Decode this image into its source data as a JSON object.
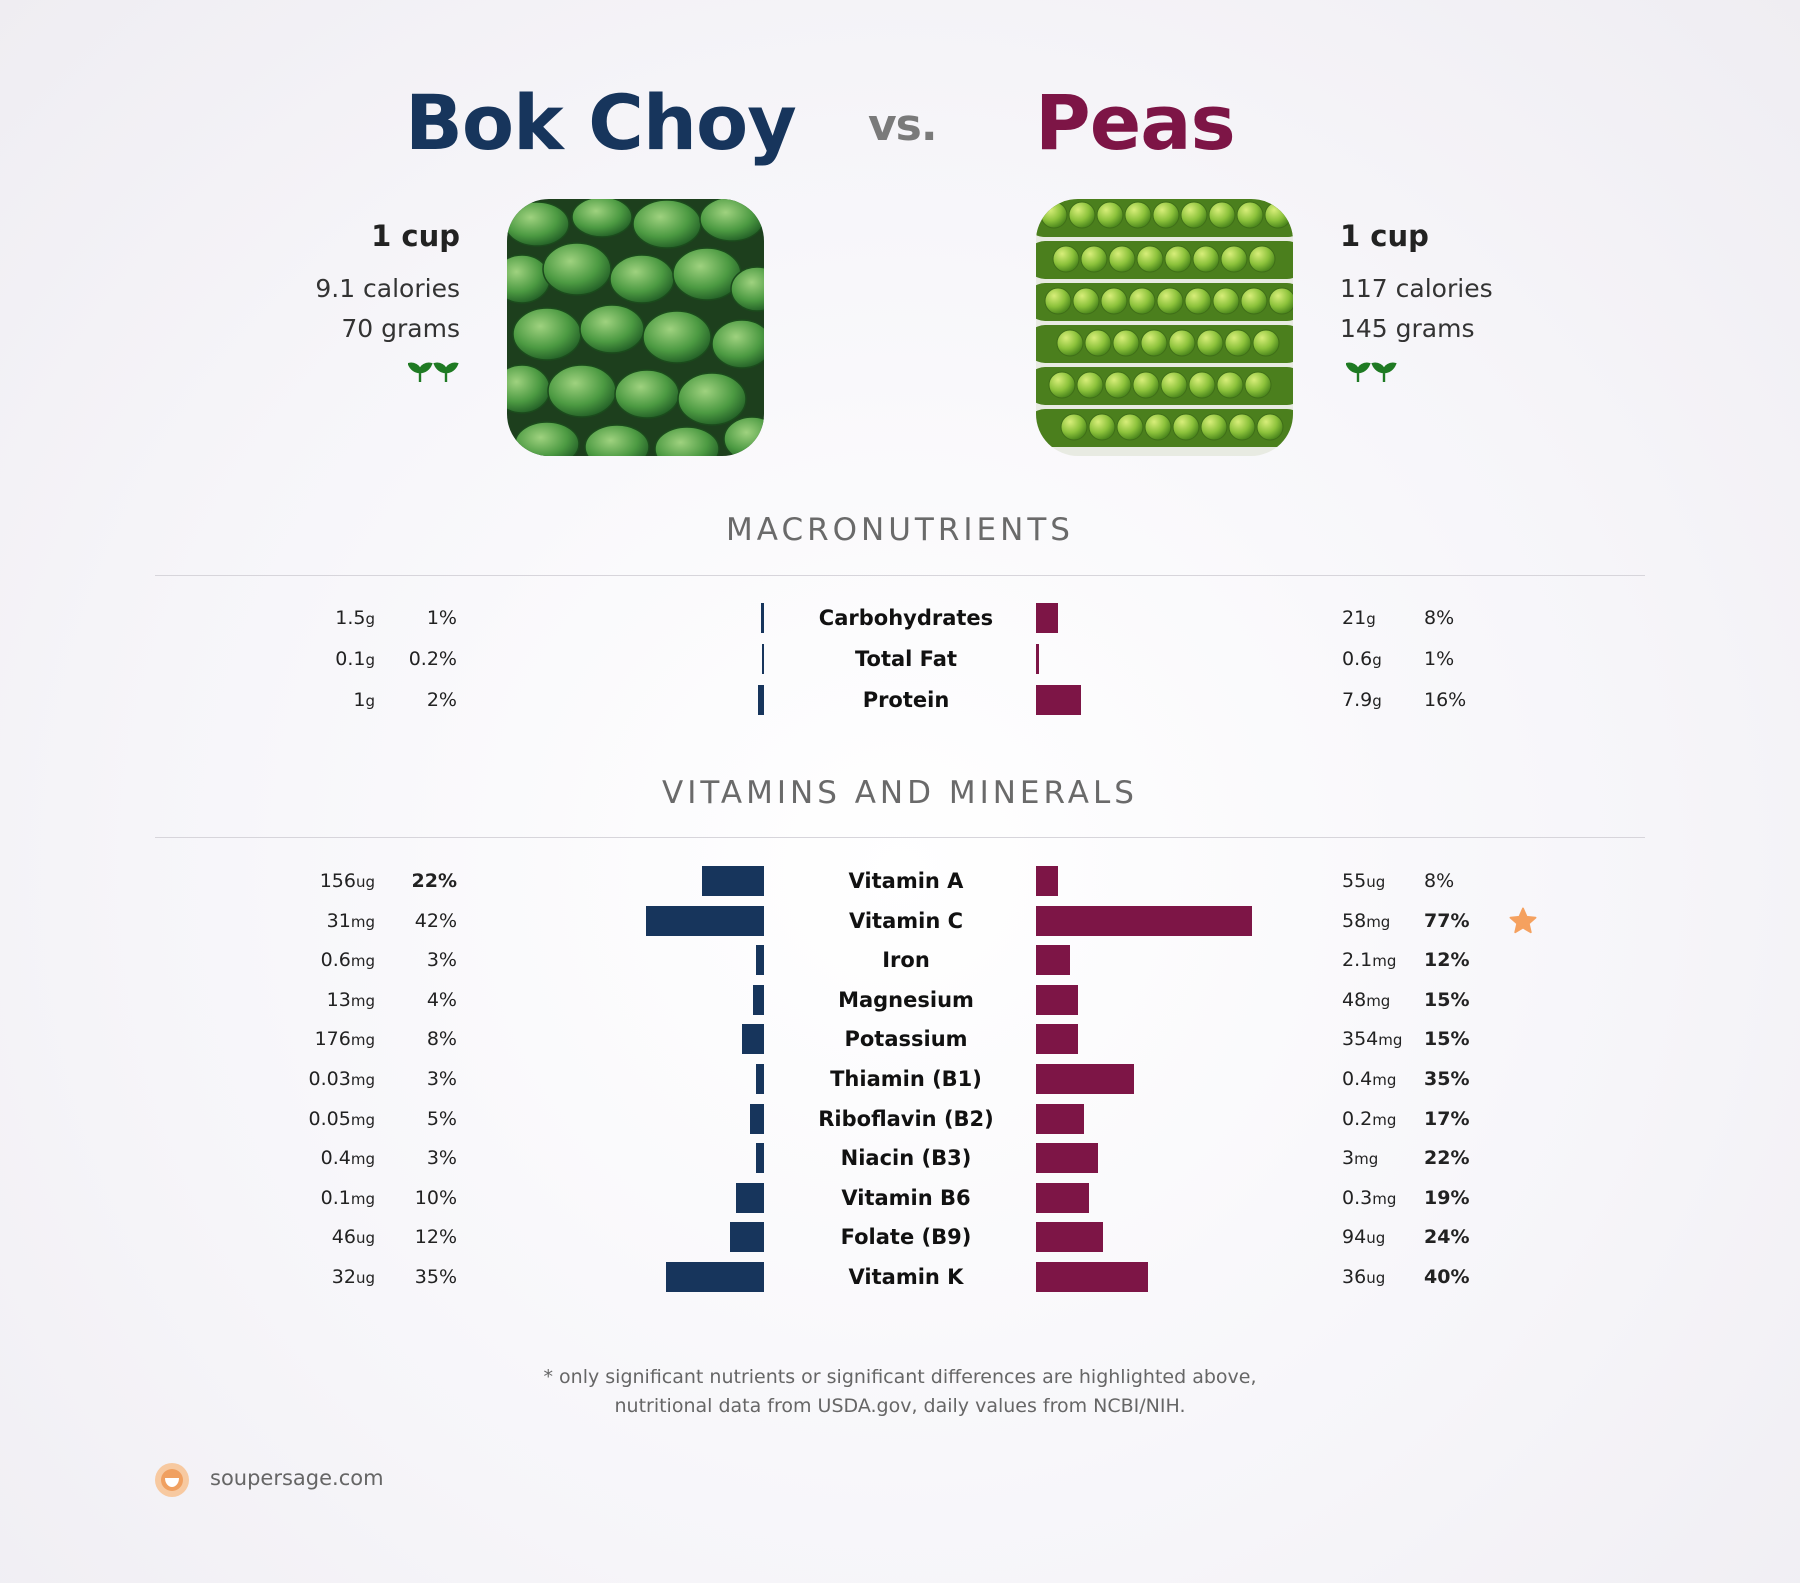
{
  "header": {
    "left_title": "Bok Choy",
    "vs": "vs.",
    "right_title": "Peas"
  },
  "left": {
    "serving": "1 cup",
    "calories": "9.1 calories",
    "grams": "70 grams",
    "image_icon": "bok-choy-photo",
    "diet_icon": "sprout-icon"
  },
  "right": {
    "serving": "1 cup",
    "calories": "117 calories",
    "grams": "145 grams",
    "image_icon": "peas-photo",
    "diet_icon": "sprout-icon"
  },
  "sections": {
    "macro_title": "MACRONUTRIENTS",
    "vitamins_title": "VITAMINS AND MINERALS"
  },
  "colors": {
    "left": "#17355c",
    "right": "#7d1546",
    "star": "#f5a15f"
  },
  "chart_data": [
    {
      "type": "bar",
      "title": "MACRONUTRIENTS",
      "categories": [
        "Carbohydrates",
        "Total Fat",
        "Protein"
      ],
      "series": [
        {
          "name": "Bok Choy",
          "amounts": [
            {
              "num": "1.5",
              "unit": "g"
            },
            {
              "num": "0.1",
              "unit": "g"
            },
            {
              "num": "1",
              "unit": "g"
            }
          ],
          "percent_labels": [
            "1%",
            "0.2%",
            "2%"
          ],
          "values": [
            1,
            0.2,
            2
          ]
        },
        {
          "name": "Peas",
          "amounts": [
            {
              "num": "21",
              "unit": "g"
            },
            {
              "num": "0.6",
              "unit": "g"
            },
            {
              "num": "7.9",
              "unit": "g"
            }
          ],
          "percent_labels": [
            "8%",
            "1%",
            "16%"
          ],
          "values": [
            8,
            1,
            16
          ]
        }
      ]
    },
    {
      "type": "bar",
      "title": "VITAMINS AND MINERALS",
      "categories": [
        "Vitamin A",
        "Vitamin C",
        "Iron",
        "Magnesium",
        "Potassium",
        "Thiamin (B1)",
        "Riboflavin (B2)",
        "Niacin (B3)",
        "Vitamin B6",
        "Folate (B9)",
        "Vitamin K"
      ],
      "series": [
        {
          "name": "Bok Choy",
          "amounts": [
            {
              "num": "156",
              "unit": "ug"
            },
            {
              "num": "31",
              "unit": "mg"
            },
            {
              "num": "0.6",
              "unit": "mg"
            },
            {
              "num": "13",
              "unit": "mg"
            },
            {
              "num": "176",
              "unit": "mg"
            },
            {
              "num": "0.03",
              "unit": "mg"
            },
            {
              "num": "0.05",
              "unit": "mg"
            },
            {
              "num": "0.4",
              "unit": "mg"
            },
            {
              "num": "0.1",
              "unit": "mg"
            },
            {
              "num": "46",
              "unit": "ug"
            },
            {
              "num": "32",
              "unit": "ug"
            }
          ],
          "percent_labels": [
            "22%",
            "42%",
            "3%",
            "4%",
            "8%",
            "3%",
            "5%",
            "3%",
            "10%",
            "12%",
            "35%"
          ],
          "values": [
            22,
            42,
            3,
            4,
            8,
            3,
            5,
            3,
            10,
            12,
            35
          ],
          "bold": [
            true,
            false,
            false,
            false,
            false,
            false,
            false,
            false,
            false,
            false,
            false
          ]
        },
        {
          "name": "Peas",
          "amounts": [
            {
              "num": "55",
              "unit": "ug"
            },
            {
              "num": "58",
              "unit": "mg"
            },
            {
              "num": "2.1",
              "unit": "mg"
            },
            {
              "num": "48",
              "unit": "mg"
            },
            {
              "num": "354",
              "unit": "mg"
            },
            {
              "num": "0.4",
              "unit": "mg"
            },
            {
              "num": "0.2",
              "unit": "mg"
            },
            {
              "num": "3",
              "unit": "mg"
            },
            {
              "num": "0.3",
              "unit": "mg"
            },
            {
              "num": "94",
              "unit": "ug"
            },
            {
              "num": "36",
              "unit": "ug"
            }
          ],
          "percent_labels": [
            "8%",
            "77%",
            "12%",
            "15%",
            "15%",
            "35%",
            "17%",
            "22%",
            "19%",
            "24%",
            "40%"
          ],
          "values": [
            8,
            77,
            12,
            15,
            15,
            35,
            17,
            22,
            19,
            24,
            40
          ],
          "bold": [
            false,
            true,
            true,
            true,
            true,
            true,
            true,
            true,
            true,
            true,
            true
          ]
        }
      ],
      "highlight_icon": "star-icon",
      "highlight_category": "Vitamin C"
    }
  ],
  "footer": {
    "line1": "* only significant nutrients or significant differences are highlighted above,",
    "line2": "nutritional data from USDA.gov, daily values from NCBI/NIH.",
    "brand": "soupersage.com",
    "brand_icon": "soupersage-logo-icon"
  }
}
